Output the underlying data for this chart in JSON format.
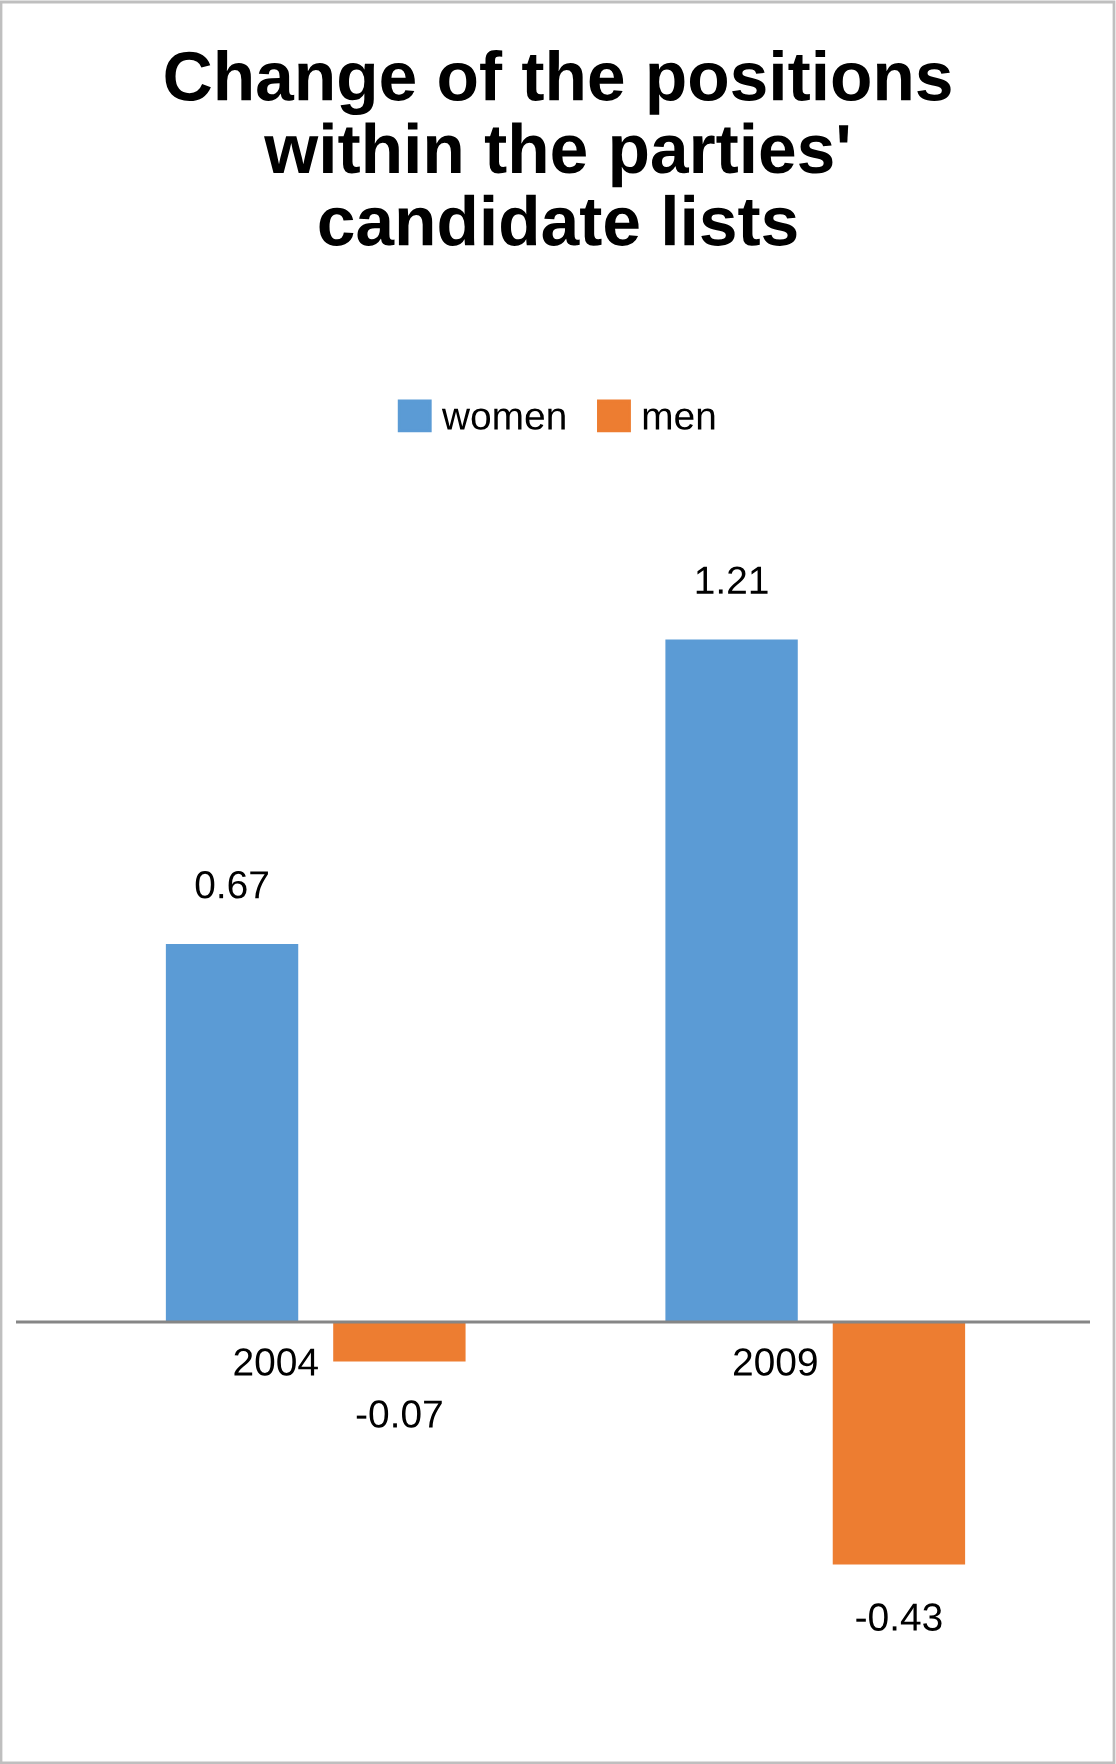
{
  "chart_data": {
    "type": "bar",
    "title": "Change of the positions within the parties' candidate lists",
    "categories": [
      "2004",
      "2009"
    ],
    "series": [
      {
        "name": "women",
        "color": "#5b9bd5",
        "values": [
          0.67,
          1.21
        ]
      },
      {
        "name": "men",
        "color": "#ed7d31",
        "values": [
          -0.07,
          -0.43
        ]
      }
    ],
    "data_labels": true,
    "legend": "top"
  }
}
